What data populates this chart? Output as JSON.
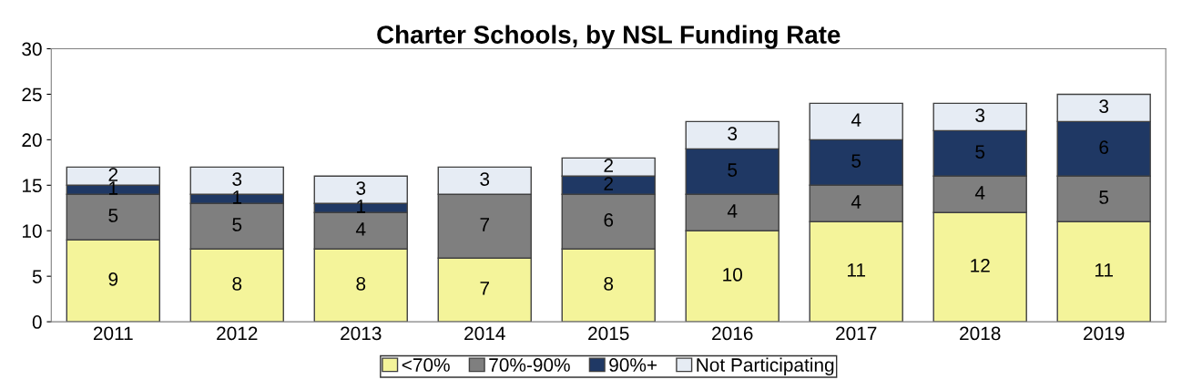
{
  "chart_data": {
    "type": "bar",
    "title": "Charter Schools, by NSL Funding Rate",
    "stacked": true,
    "categories": [
      "2011",
      "2012",
      "2013",
      "2014",
      "2015",
      "2016",
      "2017",
      "2018",
      "2019"
    ],
    "series": [
      {
        "name": "<70%",
        "color": "#f4f49a",
        "values": [
          9,
          8,
          8,
          7,
          8,
          10,
          11,
          12,
          11
        ]
      },
      {
        "name": "70%-90%",
        "color": "#7f7f7f",
        "values": [
          5,
          5,
          4,
          7,
          6,
          4,
          4,
          4,
          5
        ]
      },
      {
        "name": "90%+",
        "color": "#1f3864",
        "values": [
          1,
          1,
          1,
          null,
          2,
          5,
          5,
          5,
          6
        ]
      },
      {
        "name": "Not Participating",
        "color": "#e6ecf4",
        "values": [
          2,
          3,
          3,
          3,
          2,
          3,
          4,
          3,
          3
        ]
      }
    ],
    "ylim": [
      0,
      30
    ],
    "yticks": [
      0,
      5,
      10,
      15,
      20,
      25,
      30
    ],
    "data_labels": true,
    "legend": "bottom",
    "grid": false
  }
}
